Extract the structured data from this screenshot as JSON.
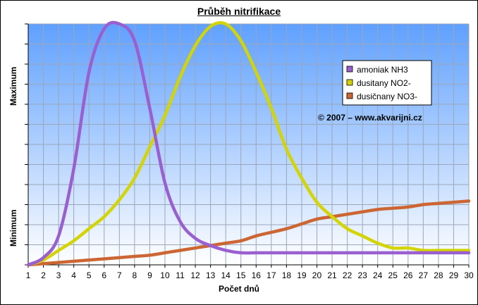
{
  "chart_data": {
    "type": "line",
    "title": "Průběh nitrifikace",
    "xlabel": "Počet dnů",
    "ylabel_top": "Maximum",
    "ylabel_bottom": "Minimum",
    "x": [
      1,
      2,
      3,
      4,
      5,
      6,
      7,
      8,
      9,
      10,
      11,
      12,
      13,
      14,
      15,
      16,
      17,
      18,
      19,
      20,
      21,
      22,
      23,
      24,
      25,
      26,
      27,
      28,
      29,
      30
    ],
    "xlim": [
      1,
      30
    ],
    "ylim": [
      0,
      100
    ],
    "grid": true,
    "legend_position": "right",
    "annotation": "© 2007 – www.akvarijni.cz",
    "series": [
      {
        "name": "amoniak NH3",
        "color": "#9a5fd0",
        "values": [
          0,
          3,
          12,
          40,
          80,
          98,
          100,
          93,
          65,
          34,
          18,
          11,
          8,
          6,
          5,
          5,
          5,
          5,
          5,
          5,
          5,
          5,
          5,
          5,
          5,
          5,
          5,
          5,
          5,
          5
        ]
      },
      {
        "name": "dusitany NO2-",
        "color": "#d4d400",
        "values": [
          0,
          2,
          6,
          10,
          15,
          20,
          27,
          36,
          49,
          62,
          78,
          91,
          99,
          100,
          93,
          80,
          65,
          48,
          36,
          26,
          20,
          15,
          12,
          9,
          7,
          7,
          6,
          6,
          6,
          6
        ]
      },
      {
        "name": "dusičnany NO3-",
        "color": "#cc6633",
        "values": [
          0,
          0.5,
          1,
          1.5,
          2,
          2.5,
          3,
          3.5,
          4,
          5,
          6,
          7,
          8,
          9,
          10,
          12,
          13.5,
          15,
          17,
          19,
          20,
          21,
          22,
          23,
          23.5,
          24,
          25,
          25.5,
          26,
          26.5
        ]
      }
    ]
  }
}
